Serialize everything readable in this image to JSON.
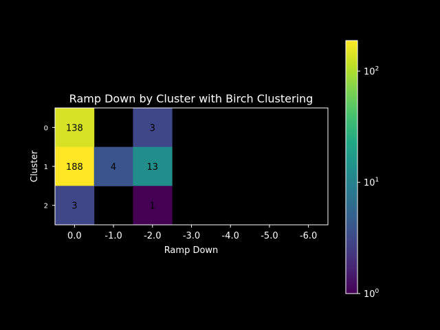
{
  "chart_data": {
    "type": "heatmap",
    "title": "Ramp Down by Cluster with Birch Clustering",
    "xlabel": "Ramp Down",
    "ylabel": "Cluster",
    "x_categories": [
      "0.0",
      "-1.0",
      "-2.0",
      "-3.0",
      "-4.0",
      "-5.0",
      "-6.0"
    ],
    "y_categories": [
      "0",
      "1",
      "2"
    ],
    "values": [
      [
        138,
        null,
        3,
        null,
        null,
        null,
        null
      ],
      [
        188,
        4,
        13,
        null,
        null,
        null,
        null
      ],
      [
        3,
        null,
        1,
        null,
        null,
        null,
        null
      ]
    ],
    "colorscale": "viridis",
    "color_scale_type": "log",
    "color_range": [
      1,
      188
    ],
    "colorbar_ticks": [
      {
        "value": 1,
        "base": "10",
        "exp": "0"
      },
      {
        "value": 10,
        "base": "10",
        "exp": "1"
      },
      {
        "value": 100,
        "base": "10",
        "exp": "2"
      }
    ],
    "background_color": "#000000",
    "empty_cell_color": "#000000"
  }
}
